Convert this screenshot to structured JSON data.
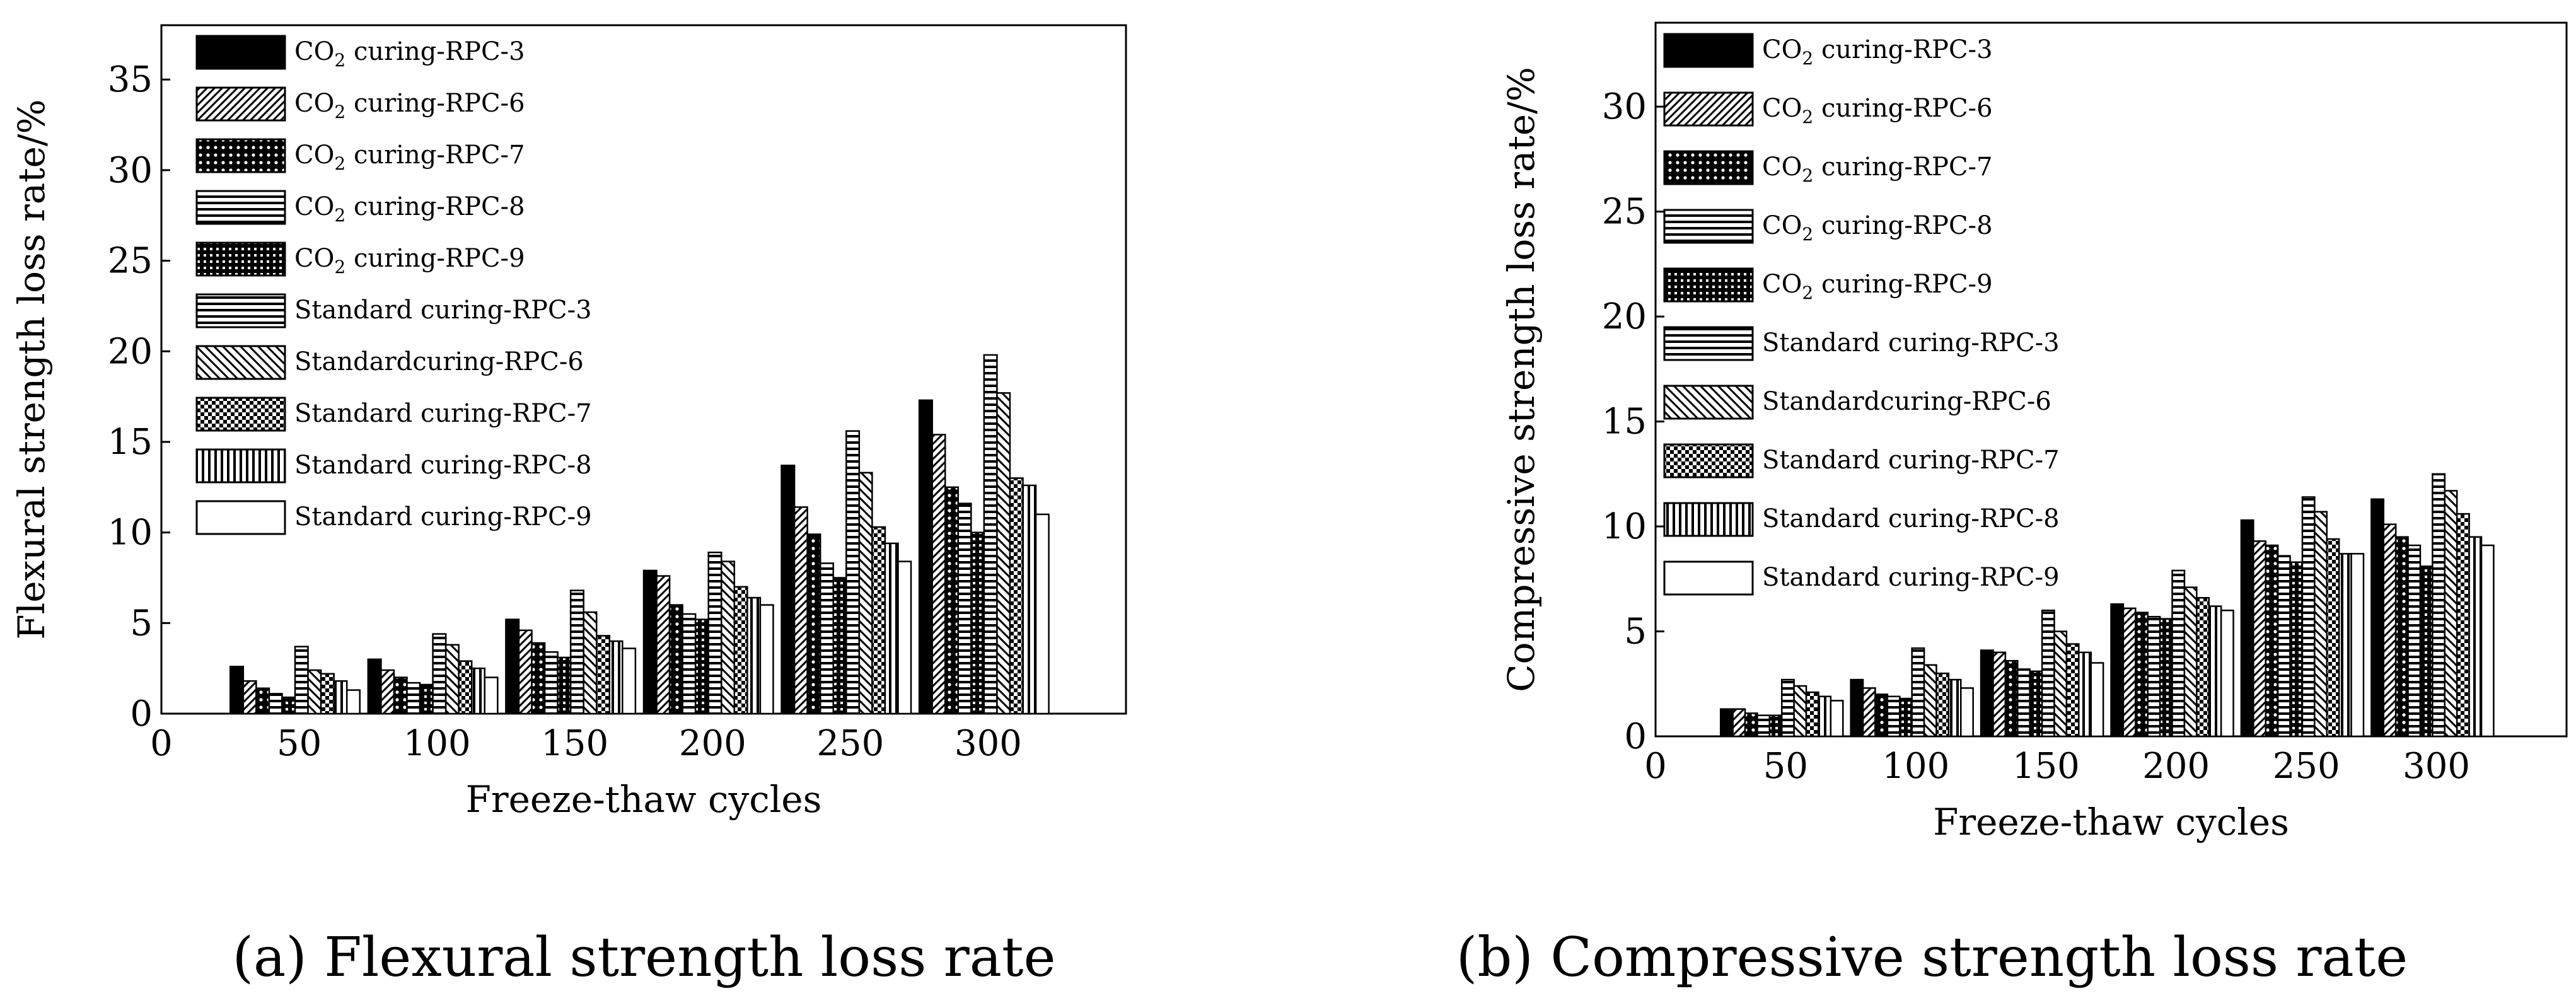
{
  "chart_data": [
    {
      "type": "bar",
      "caption": "(a) Flexural strength loss rate",
      "title": "",
      "xlabel": "Freeze-thaw cycles",
      "ylabel": "Flexural strength loss rate/%",
      "xlim": [
        0,
        350
      ],
      "ylim": [
        0,
        38
      ],
      "xticks": [
        "0",
        "50",
        "100",
        "150",
        "200",
        "250",
        "300"
      ],
      "yticks": [
        "0",
        "5",
        "10",
        "15",
        "20",
        "25",
        "30",
        "35"
      ],
      "groups": [
        25,
        75,
        125,
        175,
        225,
        275
      ],
      "series": [
        {
          "name": "CO2 curing-RPC-3",
          "legend_sub": "2",
          "values": [
            2.6,
            3.0,
            5.2,
            7.9,
            13.7,
            17.3
          ],
          "pattern": "solid"
        },
        {
          "name": "CO2 curing-RPC-6",
          "legend_sub": "2",
          "values": [
            1.8,
            2.4,
            4.6,
            7.6,
            11.4,
            15.4
          ],
          "pattern": "diag"
        },
        {
          "name": "CO2 curing-RPC-7",
          "legend_sub": "2",
          "values": [
            1.4,
            2.0,
            3.9,
            6.0,
            9.9,
            12.5
          ],
          "pattern": "dots"
        },
        {
          "name": "CO2 curing-RPC-8",
          "legend_sub": "2",
          "values": [
            1.1,
            1.7,
            3.4,
            5.5,
            8.3,
            11.6
          ],
          "pattern": "hlines"
        },
        {
          "name": "CO2 curing-RPC-9",
          "legend_sub": "2",
          "values": [
            0.9,
            1.6,
            3.1,
            5.2,
            7.5,
            10.0
          ],
          "pattern": "grid"
        },
        {
          "name": "Standard curing-RPC-3",
          "values": [
            3.7,
            4.4,
            6.8,
            8.9,
            15.6,
            19.8
          ],
          "pattern": "hlines"
        },
        {
          "name": "Standardcuring-RPC-6",
          "values": [
            2.4,
            3.8,
            5.6,
            8.4,
            13.3,
            17.7
          ],
          "pattern": "bdiag"
        },
        {
          "name": "Standard curing-RPC-7",
          "values": [
            2.2,
            2.9,
            4.3,
            7.0,
            10.3,
            13.0
          ],
          "pattern": "checker"
        },
        {
          "name": "Standard curing-RPC-8",
          "values": [
            1.8,
            2.5,
            4.0,
            6.4,
            9.4,
            12.6
          ],
          "pattern": "vlines"
        },
        {
          "name": "Standard curing-RPC-9",
          "values": [
            1.3,
            2.0,
            3.6,
            6.0,
            8.4,
            11.0
          ],
          "pattern": "white"
        }
      ]
    },
    {
      "type": "bar",
      "caption": "(b) Compressive strength loss rate",
      "title": "",
      "xlabel": "Freeze-thaw cycles",
      "ylabel": "Compressive strength loss rate/%",
      "xlim": [
        0,
        350
      ],
      "ylim": [
        0,
        34
      ],
      "xticks": [
        "0",
        "50",
        "100",
        "150",
        "200",
        "250",
        "300"
      ],
      "yticks": [
        "0",
        "5",
        "10",
        "15",
        "20",
        "25",
        "30"
      ],
      "groups": [
        25,
        75,
        125,
        175,
        225,
        275
      ],
      "series": [
        {
          "name": "CO2 curing-RPC-3",
          "legend_sub": "2",
          "values": [
            1.3,
            2.7,
            4.1,
            6.3,
            10.3,
            11.3
          ],
          "pattern": "solid"
        },
        {
          "name": "CO2 curing-RPC-6",
          "legend_sub": "2",
          "values": [
            1.3,
            2.3,
            4.0,
            6.1,
            9.3,
            10.1
          ],
          "pattern": "diag"
        },
        {
          "name": "CO2 curing-RPC-7",
          "legend_sub": "2",
          "values": [
            1.1,
            2.0,
            3.6,
            5.9,
            9.1,
            9.5
          ],
          "pattern": "dots"
        },
        {
          "name": "CO2 curing-RPC-8",
          "legend_sub": "2",
          "values": [
            1.0,
            1.9,
            3.2,
            5.7,
            8.6,
            9.1
          ],
          "pattern": "hlines"
        },
        {
          "name": "CO2 curing-RPC-9",
          "legend_sub": "2",
          "values": [
            1.0,
            1.8,
            3.1,
            5.6,
            8.3,
            8.1
          ],
          "pattern": "grid"
        },
        {
          "name": "Standard curing-RPC-3",
          "values": [
            2.7,
            4.2,
            6.0,
            7.9,
            11.4,
            12.5
          ],
          "pattern": "hlines"
        },
        {
          "name": "Standardcuring-RPC-6",
          "values": [
            2.4,
            3.4,
            5.0,
            7.1,
            10.7,
            11.7
          ],
          "pattern": "bdiag"
        },
        {
          "name": "Standard curing-RPC-7",
          "values": [
            2.1,
            3.0,
            4.4,
            6.6,
            9.4,
            10.6
          ],
          "pattern": "checker"
        },
        {
          "name": "Standard curing-RPC-8",
          "values": [
            1.9,
            2.7,
            4.0,
            6.2,
            8.7,
            9.5
          ],
          "pattern": "vlines"
        },
        {
          "name": "Standard curing-RPC-9",
          "values": [
            1.7,
            2.3,
            3.5,
            6.0,
            8.7,
            9.1
          ],
          "pattern": "white"
        }
      ]
    }
  ]
}
